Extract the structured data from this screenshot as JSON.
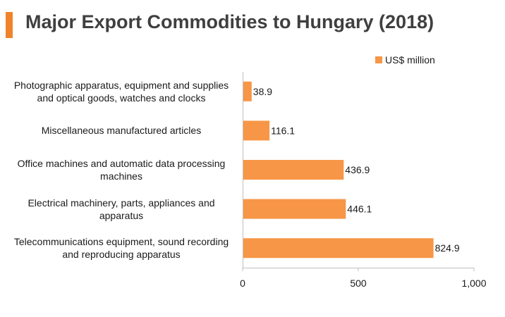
{
  "header": {
    "title": "Major Export Commodities to Hungary (2018)"
  },
  "chart_data": {
    "type": "bar",
    "orientation": "horizontal",
    "title": "Major Export Commodities to Hungary (2018)",
    "categories": [
      "Photographic apparatus, equipment and supplies and optical goods, watches and clocks",
      "Miscellaneous manufactured articles",
      "Office machines and automatic data processing machines",
      "Electrical machinery, parts, appliances and apparatus",
      "Telecommunications equipment, sound recording and reproducing apparatus"
    ],
    "series": [
      {
        "name": "US$ million",
        "values": [
          38.9,
          116.1,
          436.9,
          446.1,
          824.9
        ],
        "value_labels": [
          "38.9",
          "116.1",
          "436.9",
          "446.1",
          "824.9"
        ],
        "color": "#f79646"
      }
    ],
    "xlim": [
      0,
      1000
    ],
    "xticks": [
      0,
      500,
      1000
    ],
    "xtick_labels": [
      "0",
      "500",
      "1,000"
    ],
    "xlabel": "",
    "ylabel": "",
    "grid": false,
    "legend": "top-right"
  },
  "colors": {
    "accent": "#f0842c",
    "bar": "#f79646",
    "axis": "#bfbfbf"
  }
}
